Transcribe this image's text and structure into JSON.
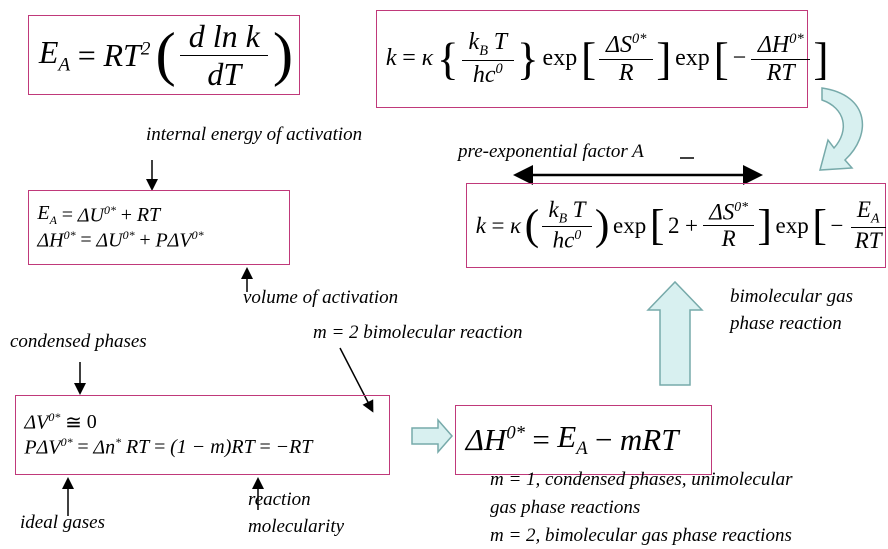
{
  "equations": [
    {
      "lines": [
        [
          {
            "t": "E",
            "sub": "A"
          },
          "=",
          {
            "t": "RT",
            "sup": "2"
          },
          {
            "big": "("
          },
          {
            "num": [
              "d ln k"
            ],
            "den": [
              "dT"
            ]
          },
          {
            "big": ")"
          }
        ]
      ]
    },
    {
      "lines": [
        [
          "k",
          "=",
          "κ",
          {
            "big": "{"
          },
          {
            "num": [
              {
                "t": "k",
                "sub": "B"
              },
              "T"
            ],
            "den": [
              {
                "t": "hc",
                "sup": "0"
              }
            ]
          },
          {
            "big": "}"
          },
          "exp",
          {
            "big": "["
          },
          {
            "num": [
              {
                "t": "ΔS",
                "sup": "0*"
              }
            ],
            "den": [
              "R"
            ]
          },
          {
            "big": "]"
          },
          "exp",
          {
            "big": "["
          },
          "−",
          {
            "num": [
              {
                "t": "ΔH",
                "sup": "0*"
              }
            ],
            "den": [
              "RT"
            ]
          },
          {
            "big": "]"
          }
        ]
      ]
    },
    {
      "lines": [
        [
          {
            "t": "E",
            "sub": "A"
          },
          "=",
          {
            "t": "ΔU",
            "sup": "0*"
          },
          "+",
          "RT"
        ],
        [
          {
            "t": "ΔH",
            "sup": "0*"
          },
          "=",
          {
            "t": "ΔU",
            "sup": "0*"
          },
          "+",
          {
            "t": "PΔV",
            "sup": "0*"
          }
        ]
      ]
    },
    {
      "lines": [
        [
          "k",
          "=",
          "κ",
          {
            "big": "("
          },
          {
            "num": [
              {
                "t": "k",
                "sub": "B"
              },
              "T"
            ],
            "den": [
              {
                "t": "hc",
                "sup": "0"
              }
            ]
          },
          {
            "big": ")"
          },
          "exp",
          {
            "big": "["
          },
          "2",
          "+",
          {
            "num": [
              {
                "t": "ΔS",
                "sup": "0*"
              }
            ],
            "den": [
              "R"
            ]
          },
          {
            "big": "]"
          },
          "exp",
          {
            "big": "["
          },
          "−",
          {
            "num": [
              {
                "t": "E",
                "sub": "A"
              }
            ],
            "den": [
              "RT"
            ]
          },
          {
            "big": "]"
          }
        ]
      ]
    },
    {
      "lines": [
        [
          {
            "t": "ΔV",
            "sup": "0*"
          },
          "≅",
          "0"
        ],
        [
          {
            "t": "PΔV",
            "sup": "0*"
          },
          "=",
          {
            "t": "Δn",
            "sup": "*"
          },
          "RT",
          "=",
          "(1 − m)RT",
          "=",
          "−RT"
        ]
      ]
    },
    {
      "lines": [
        [
          {
            "t": "ΔH",
            "sup": "0*"
          },
          "=",
          {
            "t": "E",
            "sub": "A"
          },
          "−",
          "mRT"
        ]
      ]
    }
  ],
  "labels": {
    "internal_energy": "internal energy of activation",
    "volume": "volume of activation",
    "pre_exponential": "pre-exponential factor A",
    "bimolecular_gas": [
      "bimolecular gas",
      "phase reaction"
    ],
    "condensed": "condensed phases",
    "m2": "m = 2 bimolecular reaction",
    "ideal": "ideal gases",
    "molecularity": [
      "reaction",
      "molecularity"
    ],
    "notes": [
      "m = 1, condensed phases, unimolecular",
      "gas phase reactions",
      "m = 2, bimolecular gas phase reactions"
    ]
  }
}
